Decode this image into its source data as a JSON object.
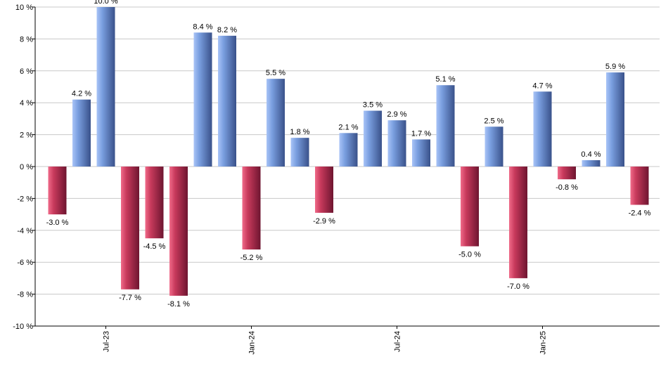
{
  "chart_data": {
    "type": "bar",
    "title": "",
    "xlabel": "",
    "ylabel": "",
    "ylim": [
      -10,
      10
    ],
    "yticks": [
      10,
      8,
      6,
      4,
      2,
      0,
      -2,
      -4,
      -6,
      -8,
      -10
    ],
    "ytick_labels": [
      "10 %",
      "8 %",
      "6 %",
      "4 %",
      "2 %",
      "0 %",
      "-2 %",
      "-4 %",
      "-6 %",
      "-8 %",
      "-10 %"
    ],
    "grid": true,
    "values": [
      -3.0,
      4.2,
      10.0,
      -7.7,
      -4.5,
      -8.1,
      8.4,
      8.2,
      -5.2,
      5.5,
      1.8,
      -2.9,
      2.1,
      3.5,
      2.9,
      1.7,
      5.1,
      -5.0,
      2.5,
      -7.0,
      4.7,
      -0.8,
      0.4,
      5.9,
      -2.4
    ],
    "value_labels": [
      "-3.0 %",
      "4.2 %",
      "10.0 %",
      "-7.7 %",
      "-4.5 %",
      "-8.1 %",
      "8.4 %",
      "8.2 %",
      "-5.2 %",
      "5.5 %",
      "1.8 %",
      "-2.9 %",
      "2.1 %",
      "3.5 %",
      "2.9 %",
      "1.7 %",
      "5.1 %",
      "-5.0 %",
      "2.5 %",
      "-7.0 %",
      "4.7 %",
      "-0.8 %",
      "0.4 %",
      "5.9 %",
      "-2.4 %"
    ],
    "x_tick_labels": [
      {
        "label": "Jul-23",
        "bar_index": 2
      },
      {
        "label": "Jan-24",
        "bar_index": 8
      },
      {
        "label": "Jul-24",
        "bar_index": 14
      },
      {
        "label": "Jan-25",
        "bar_index": 20
      }
    ],
    "colors": {
      "positive": "#7a9fe0",
      "positive_light": "#a9c4f7",
      "positive_dark": "#39518a",
      "negative": "#c83a5c",
      "negative_light": "#f06b8a",
      "negative_dark": "#6e1530",
      "grid": "#c8c8c8",
      "axis": "#000000"
    }
  }
}
